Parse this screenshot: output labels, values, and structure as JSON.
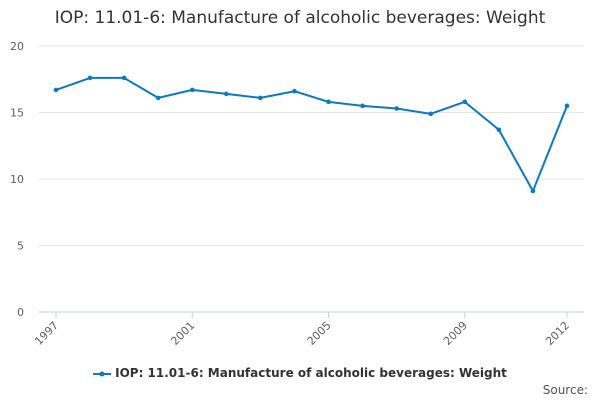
{
  "chart_data": {
    "type": "line",
    "title": "IOP: 11.01-6: Manufacture of alcoholic beverages: Weight",
    "xlabel": "",
    "ylabel": "",
    "x": [
      1997,
      1998,
      1999,
      2000,
      2001,
      2002,
      2003,
      2004,
      2005,
      2006,
      2007,
      2008,
      2009,
      2010,
      2011,
      2012
    ],
    "series": [
      {
        "name": "IOP: 11.01-6: Manufacture of alcoholic beverages: Weight",
        "color": "#0b7abf",
        "values": [
          16.7,
          17.6,
          17.6,
          16.1,
          16.7,
          16.4,
          16.1,
          16.6,
          15.8,
          15.5,
          15.3,
          14.9,
          15.8,
          13.7,
          9.1,
          15.5
        ]
      }
    ],
    "x_tick_labels": [
      "1997",
      "2001",
      "2005",
      "2009",
      "2012"
    ],
    "y_tick_labels": [
      "0",
      "5",
      "10",
      "15",
      "20"
    ],
    "ylim": [
      0,
      20
    ],
    "grid": true,
    "legend": "bottom-center",
    "source_label": "Source:"
  }
}
